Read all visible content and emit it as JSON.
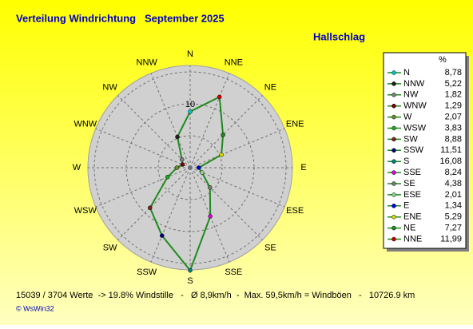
{
  "chart_data": {
    "type": "radar",
    "title": "Verteilung Windrichtung   September 2025",
    "subtitle": "Hallschlag",
    "legend_header": "%",
    "categories": [
      "N",
      "NNW",
      "NW",
      "WNW",
      "W",
      "WSW",
      "SW",
      "SSW",
      "S",
      "SSE",
      "SE",
      "ESE",
      "E",
      "ENE",
      "NE",
      "NNE"
    ],
    "direction": "counterclockwise",
    "values": [
      8.78,
      5.22,
      1.82,
      1.29,
      2.07,
      3.83,
      8.88,
      11.51,
      16.08,
      8.24,
      4.38,
      2.01,
      1.34,
      5.29,
      7.27,
      11.99
    ],
    "value_labels": [
      "8,78",
      "5,22",
      "1,82",
      "1,29",
      "2,07",
      "3,83",
      "8,88",
      "11,51",
      "16,08",
      "8,24",
      "4,38",
      "2,01",
      "1,34",
      "5,29",
      "7,27",
      "11,99"
    ],
    "color": "#1f8a1f",
    "marker_colors": [
      "#00c8c8",
      "#202020",
      "#808080",
      "#800000",
      "#6b8e23",
      "#1faa1f",
      "#802020",
      "#000080",
      "#008080",
      "#e000e0",
      "#708070",
      "#90d090",
      "#0000e0",
      "#d8d800",
      "#1f8a1f",
      "#d00000"
    ],
    "rlim": [
      0,
      16
    ],
    "rticks": [
      10
    ],
    "rgrid": [
      5,
      10,
      15
    ],
    "footer": "15039 / 3704 Werte  -> 19.8% Windstille   -   Ø 8,9km/h  -  Max. 59,5km/h = Windböen   -   10726.9 km",
    "copyright": "© WsWin32"
  }
}
